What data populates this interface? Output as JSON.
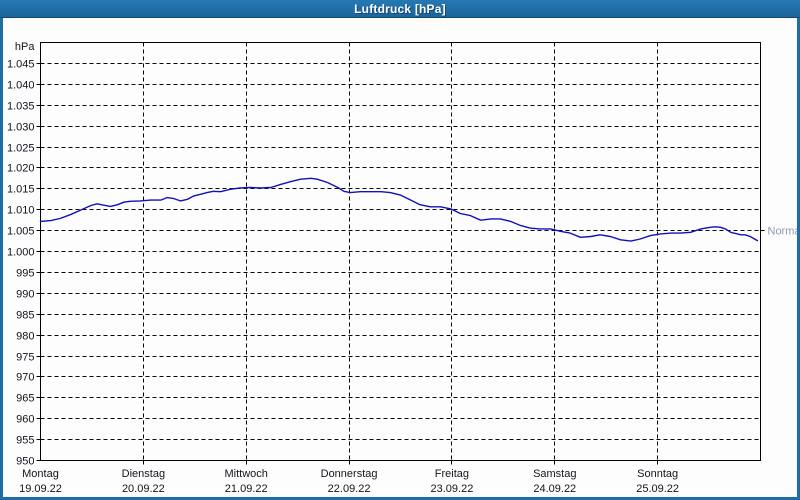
{
  "window": {
    "title": "Luftdruck [hPa]"
  },
  "chart": {
    "unit_label": "hPa",
    "y_ticks": [
      [
        1045,
        "1.045"
      ],
      [
        1040,
        "1.040"
      ],
      [
        1035,
        "1.035"
      ],
      [
        1030,
        "1.030"
      ],
      [
        1025,
        "1.025"
      ],
      [
        1020,
        "1.020"
      ],
      [
        1015,
        "1.015"
      ],
      [
        1010,
        "1.010"
      ],
      [
        1005,
        "1.005"
      ],
      [
        1000,
        "1.000"
      ],
      [
        995,
        "995"
      ],
      [
        990,
        "990"
      ],
      [
        985,
        "985"
      ],
      [
        980,
        "980"
      ],
      [
        975,
        "975"
      ],
      [
        970,
        "970"
      ],
      [
        965,
        "965"
      ],
      [
        960,
        "960"
      ],
      [
        955,
        "955"
      ],
      [
        950,
        "950"
      ]
    ],
    "days": [
      {
        "name": "Montag",
        "date": "19.09.22"
      },
      {
        "name": "Dienstag",
        "date": "20.09.22"
      },
      {
        "name": "Mittwoch",
        "date": "21.09.22"
      },
      {
        "name": "Donnerstag",
        "date": "22.09.22"
      },
      {
        "name": "Freitag",
        "date": "23.09.22"
      },
      {
        "name": "Samstag",
        "date": "24.09.22"
      },
      {
        "name": "Sonntag",
        "date": "25.09.22"
      }
    ],
    "normal": {
      "label": "Normal",
      "value": 1005
    }
  },
  "colors": {
    "frame": "#1e6da6",
    "plot_bg": "#fdfdfd",
    "grid": "#000000",
    "axis": "#000000",
    "tick_text": "#10151c",
    "curve": "#1111bb",
    "normal_text": "#8c9ab0"
  },
  "chart_data": {
    "type": "line",
    "title": "Luftdruck [hPa]",
    "ylabel": "hPa",
    "ylim": [
      950,
      1050
    ],
    "y_step": 5,
    "x_unit": "day offset, Montag 19.09.22 (0) to Sonntag 25.09.22 (7)",
    "xlim": [
      0,
      7
    ],
    "grid": "dashed, horizontal every 5 hPa, vertical at day boundaries",
    "annotations": [
      {
        "label": "Normal",
        "y": 1005,
        "side": "right"
      }
    ],
    "series": [
      {
        "name": "Luftdruck",
        "points": [
          [
            0.0,
            1007.2
          ],
          [
            0.1,
            1007.4
          ],
          [
            0.19,
            1007.9
          ],
          [
            0.29,
            1008.8
          ],
          [
            0.39,
            1009.9
          ],
          [
            0.49,
            1011.0
          ],
          [
            0.55,
            1011.4
          ],
          [
            0.61,
            1011.1
          ],
          [
            0.68,
            1010.8
          ],
          [
            0.75,
            1011.2
          ],
          [
            0.81,
            1011.8
          ],
          [
            0.87,
            1012.0
          ],
          [
            0.97,
            1012.1
          ],
          [
            1.07,
            1012.3
          ],
          [
            1.17,
            1012.3
          ],
          [
            1.23,
            1012.9
          ],
          [
            1.29,
            1012.7
          ],
          [
            1.36,
            1012.1
          ],
          [
            1.43,
            1012.5
          ],
          [
            1.49,
            1013.3
          ],
          [
            1.56,
            1013.7
          ],
          [
            1.62,
            1014.1
          ],
          [
            1.68,
            1014.4
          ],
          [
            1.75,
            1014.3
          ],
          [
            1.85,
            1014.9
          ],
          [
            1.94,
            1015.2
          ],
          [
            2.04,
            1015.3
          ],
          [
            2.14,
            1015.2
          ],
          [
            2.24,
            1015.3
          ],
          [
            2.33,
            1016.0
          ],
          [
            2.43,
            1016.7
          ],
          [
            2.53,
            1017.3
          ],
          [
            2.63,
            1017.5
          ],
          [
            2.69,
            1017.3
          ],
          [
            2.79,
            1016.5
          ],
          [
            2.89,
            1015.3
          ],
          [
            2.95,
            1014.4
          ],
          [
            3.01,
            1014.1
          ],
          [
            3.11,
            1014.3
          ],
          [
            3.21,
            1014.3
          ],
          [
            3.31,
            1014.3
          ],
          [
            3.4,
            1014.1
          ],
          [
            3.5,
            1013.5
          ],
          [
            3.6,
            1012.3
          ],
          [
            3.69,
            1011.2
          ],
          [
            3.79,
            1010.7
          ],
          [
            3.89,
            1010.7
          ],
          [
            3.99,
            1010.2
          ],
          [
            4.04,
            1009.6
          ],
          [
            4.08,
            1009.1
          ],
          [
            4.18,
            1008.6
          ],
          [
            4.28,
            1007.5
          ],
          [
            4.38,
            1007.8
          ],
          [
            4.47,
            1007.8
          ],
          [
            4.57,
            1007.2
          ],
          [
            4.67,
            1006.2
          ],
          [
            4.76,
            1005.6
          ],
          [
            4.86,
            1005.4
          ],
          [
            4.96,
            1005.4
          ],
          [
            5.06,
            1004.8
          ],
          [
            5.15,
            1004.4
          ],
          [
            5.25,
            1003.4
          ],
          [
            5.35,
            1003.6
          ],
          [
            5.44,
            1004.0
          ],
          [
            5.54,
            1003.6
          ],
          [
            5.64,
            1002.8
          ],
          [
            5.74,
            1002.5
          ],
          [
            5.83,
            1003.0
          ],
          [
            5.93,
            1003.8
          ],
          [
            6.03,
            1004.2
          ],
          [
            6.13,
            1004.4
          ],
          [
            6.22,
            1004.4
          ],
          [
            6.32,
            1004.6
          ],
          [
            6.42,
            1005.4
          ],
          [
            6.51,
            1005.8
          ],
          [
            6.56,
            1005.9
          ],
          [
            6.61,
            1005.8
          ],
          [
            6.66,
            1005.4
          ],
          [
            6.71,
            1004.6
          ],
          [
            6.81,
            1004.0
          ],
          [
            6.85,
            1004.0
          ],
          [
            6.9,
            1003.6
          ],
          [
            6.97,
            1002.6
          ]
        ]
      }
    ]
  }
}
